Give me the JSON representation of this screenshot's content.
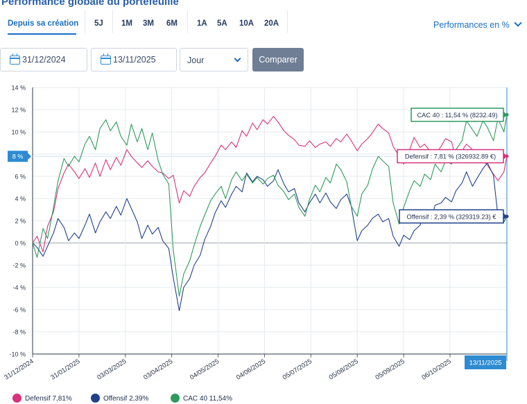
{
  "header": {
    "title": "Performance globale du portefeuille",
    "metric_select": "Performances en %"
  },
  "tabs": [
    {
      "label": "Depuis sa création",
      "active": true
    },
    {
      "label": "5J"
    },
    {
      "label": "1M"
    },
    {
      "label": "3M"
    },
    {
      "label": "6M"
    },
    {
      "label": "1A"
    },
    {
      "label": "5A"
    },
    {
      "label": "10A"
    },
    {
      "label": "20A"
    }
  ],
  "filters": {
    "start_date": "31/12/2024",
    "end_date": "13/11/2025",
    "granularity": "Jour",
    "compare_label": "Comparer"
  },
  "colors": {
    "defensif": "#d6337c",
    "offensif": "#21408a",
    "cac40": "#2e9a5e",
    "accent": "#2e8bd1"
  },
  "legend": [
    {
      "key": "defensif",
      "name": "Defensif",
      "value": "7,81%"
    },
    {
      "key": "offensif",
      "name": "Offensif",
      "value": "2,39%"
    },
    {
      "key": "cac40",
      "name": "CAC 40",
      "value": "11,54%"
    }
  ],
  "chart_data": {
    "type": "line",
    "ylim": [
      -10,
      14
    ],
    "y_ticks": [
      "-10 %",
      "-8 %",
      "-6 %",
      "-4 %",
      "-2 %",
      "0 %",
      "2 %",
      "4 %",
      "6 %",
      "8 %",
      "10 %",
      "12 %",
      "14 %"
    ],
    "x_ticks": [
      "31/12/2024",
      "31/01/2025",
      "03/03/2025",
      "03/04/2025",
      "04/05/2025",
      "04/06/2025",
      "05/07/2025",
      "05/08/2025",
      "05/09/2025",
      "06/10/2025"
    ],
    "crosshair": {
      "y_label": "8 %",
      "y_value": 7.8,
      "x_label": "13/11/2025"
    },
    "tooltips": [
      {
        "series": "cac40",
        "text": "CAC 40 : 11,54 % (8232.49)",
        "y": 11.54
      },
      {
        "series": "defensif",
        "text": "Defensif : 7,81 % (326932.89 €)",
        "y": 7.81
      },
      {
        "series": "offensif",
        "text": "Offensif : 2,39 % (329319.23) €",
        "y": 2.39
      }
    ],
    "series": [
      {
        "key": "defensif",
        "name": "Defensif",
        "x": [
          "31/12/2024",
          "03/01/2025",
          "07/01/2025",
          "10/01/2025",
          "14/01/2025",
          "17/01/2025",
          "21/01/2025",
          "24/01/2025",
          "28/01/2025",
          "31/01/2025",
          "04/02/2025",
          "07/02/2025",
          "11/02/2025",
          "14/02/2025",
          "18/02/2025",
          "21/02/2025",
          "25/02/2025",
          "28/02/2025",
          "04/03/2025",
          "07/03/2025",
          "11/03/2025",
          "14/03/2025",
          "18/03/2025",
          "21/03/2025",
          "25/03/2025",
          "28/03/2025",
          "01/04/2025",
          "04/04/2025",
          "08/04/2025",
          "11/04/2025",
          "15/04/2025",
          "18/04/2025",
          "22/04/2025",
          "25/04/2025",
          "29/04/2025",
          "02/05/2025",
          "06/05/2025",
          "09/05/2025",
          "13/05/2025",
          "16/05/2025",
          "20/05/2025",
          "23/05/2025",
          "27/05/2025",
          "30/05/2025",
          "03/06/2025",
          "06/06/2025",
          "10/06/2025",
          "13/06/2025",
          "17/06/2025",
          "20/06/2025",
          "24/06/2025",
          "27/06/2025",
          "01/07/2025",
          "04/07/2025",
          "08/07/2025",
          "11/07/2025",
          "15/07/2025",
          "18/07/2025",
          "22/07/2025",
          "25/07/2025",
          "29/07/2025",
          "01/08/2025",
          "05/08/2025",
          "08/08/2025",
          "12/08/2025",
          "15/08/2025",
          "19/08/2025",
          "22/08/2025",
          "26/08/2025",
          "29/08/2025",
          "02/09/2025",
          "05/09/2025",
          "09/09/2025",
          "12/09/2025",
          "16/09/2025",
          "19/09/2025",
          "23/09/2025",
          "26/09/2025",
          "30/09/2025",
          "03/10/2025",
          "07/10/2025",
          "10/10/2025",
          "14/10/2025",
          "17/10/2025",
          "21/10/2025",
          "24/10/2025",
          "28/10/2025",
          "31/10/2025",
          "04/11/2025",
          "07/11/2025",
          "11/11/2025",
          "13/11/2025"
        ],
        "values": [
          0,
          0.6,
          -0.8,
          1.5,
          2.8,
          4.9,
          6.3,
          7.1,
          6.4,
          5.8,
          6.7,
          5.9,
          7.2,
          6.0,
          7.5,
          6.6,
          7.7,
          7.0,
          8.4,
          7.8,
          7.2,
          6.8,
          7.4,
          6.9,
          6.4,
          6.3,
          5.8,
          6.1,
          3.6,
          4.7,
          4.2,
          5.1,
          5.9,
          6.3,
          7.2,
          7.8,
          8.8,
          8.4,
          9.1,
          8.6,
          10.1,
          9.6,
          10.8,
          10.2,
          11.1,
          10.7,
          11.4,
          10.9,
          10.1,
          9.7,
          9.3,
          8.8,
          8.7,
          9.2,
          8.6,
          8.9,
          9.1,
          8.7,
          9.4,
          9.1,
          9.8,
          9.2,
          8.3,
          8.9,
          9.4,
          9.9,
          10.7,
          10.3,
          9.9,
          8.7,
          7.8,
          7.1,
          8.4,
          9.5,
          8.6,
          8.9,
          8.2,
          7.9,
          8.7,
          9.4,
          9.1,
          7.6,
          8.3,
          8.9,
          8.4,
          8.1,
          7.4,
          7.0,
          6.2,
          5.6,
          6.4,
          7.81
        ]
      },
      {
        "key": "offensif",
        "name": "Offensif",
        "x": [
          "31/12/2024",
          "03/01/2025",
          "07/01/2025",
          "10/01/2025",
          "14/01/2025",
          "17/01/2025",
          "21/01/2025",
          "24/01/2025",
          "28/01/2025",
          "31/01/2025",
          "04/02/2025",
          "07/02/2025",
          "11/02/2025",
          "14/02/2025",
          "18/02/2025",
          "21/02/2025",
          "25/02/2025",
          "28/02/2025",
          "04/03/2025",
          "07/03/2025",
          "11/03/2025",
          "14/03/2025",
          "18/03/2025",
          "21/03/2025",
          "25/03/2025",
          "28/03/2025",
          "01/04/2025",
          "04/04/2025",
          "08/04/2025",
          "11/04/2025",
          "15/04/2025",
          "18/04/2025",
          "22/04/2025",
          "25/04/2025",
          "29/04/2025",
          "02/05/2025",
          "06/05/2025",
          "09/05/2025",
          "13/05/2025",
          "16/05/2025",
          "20/05/2025",
          "23/05/2025",
          "27/05/2025",
          "30/05/2025",
          "03/06/2025",
          "06/06/2025",
          "10/06/2025",
          "13/06/2025",
          "17/06/2025",
          "20/06/2025",
          "24/06/2025",
          "27/06/2025",
          "01/07/2025",
          "04/07/2025",
          "08/07/2025",
          "11/07/2025",
          "15/07/2025",
          "18/07/2025",
          "22/07/2025",
          "25/07/2025",
          "29/07/2025",
          "01/08/2025",
          "05/08/2025",
          "08/08/2025",
          "12/08/2025",
          "15/08/2025",
          "19/08/2025",
          "22/08/2025",
          "26/08/2025",
          "29/08/2025",
          "02/09/2025",
          "05/09/2025",
          "09/09/2025",
          "12/09/2025",
          "16/09/2025",
          "19/09/2025",
          "23/09/2025",
          "26/09/2025",
          "30/09/2025",
          "03/10/2025",
          "07/10/2025",
          "10/10/2025",
          "14/10/2025",
          "17/10/2025",
          "21/10/2025",
          "24/10/2025",
          "28/10/2025",
          "31/10/2025",
          "04/11/2025",
          "07/11/2025",
          "11/11/2025",
          "13/11/2025"
        ],
        "values": [
          0,
          -0.4,
          -1.2,
          -0.3,
          0.9,
          2.2,
          1.4,
          0.2,
          0.9,
          0.4,
          1.6,
          2.6,
          0.9,
          1.9,
          2.8,
          2.2,
          3.3,
          2.5,
          4.0,
          3.1,
          1.9,
          0.4,
          1.6,
          0.8,
          1.4,
          0.2,
          -0.5,
          -3.1,
          -6.1,
          -4.0,
          -3.2,
          -2.0,
          -1.1,
          0.3,
          1.5,
          2.7,
          3.8,
          3.2,
          4.4,
          5.1,
          4.6,
          6.3,
          5.5,
          6.0,
          5.7,
          5.1,
          5.6,
          6.6,
          5.3,
          4.6,
          4.9,
          3.6,
          2.8,
          3.6,
          4.4,
          3.6,
          4.5,
          3.7,
          3.1,
          3.9,
          4.4,
          3.3,
          0.2,
          1.1,
          1.6,
          2.2,
          2.6,
          1.9,
          2.2,
          0.6,
          -0.3,
          0.7,
          0.3,
          1.1,
          1.6,
          2.8,
          1.9,
          3.4,
          3.6,
          4.1,
          3.7,
          4.7,
          5.4,
          6.4,
          5.1,
          5.8,
          6.7,
          7.2,
          6.1,
          2.4,
          1.9,
          2.39
        ]
      },
      {
        "key": "cac40",
        "name": "CAC 40",
        "x": [
          "31/12/2024",
          "03/01/2025",
          "07/01/2025",
          "10/01/2025",
          "14/01/2025",
          "17/01/2025",
          "21/01/2025",
          "24/01/2025",
          "28/01/2025",
          "31/01/2025",
          "04/02/2025",
          "07/02/2025",
          "11/02/2025",
          "14/02/2025",
          "18/02/2025",
          "21/02/2025",
          "25/02/2025",
          "28/02/2025",
          "04/03/2025",
          "07/03/2025",
          "11/03/2025",
          "14/03/2025",
          "18/03/2025",
          "21/03/2025",
          "25/03/2025",
          "28/03/2025",
          "01/04/2025",
          "04/04/2025",
          "08/04/2025",
          "11/04/2025",
          "15/04/2025",
          "18/04/2025",
          "22/04/2025",
          "25/04/2025",
          "29/04/2025",
          "02/05/2025",
          "06/05/2025",
          "09/05/2025",
          "13/05/2025",
          "16/05/2025",
          "20/05/2025",
          "23/05/2025",
          "27/05/2025",
          "30/05/2025",
          "03/06/2025",
          "06/06/2025",
          "10/06/2025",
          "13/06/2025",
          "17/06/2025",
          "20/06/2025",
          "24/06/2025",
          "27/06/2025",
          "01/07/2025",
          "04/07/2025",
          "08/07/2025",
          "11/07/2025",
          "15/07/2025",
          "18/07/2025",
          "22/07/2025",
          "25/07/2025",
          "29/07/2025",
          "01/08/2025",
          "05/08/2025",
          "08/08/2025",
          "12/08/2025",
          "15/08/2025",
          "19/08/2025",
          "22/08/2025",
          "26/08/2025",
          "29/08/2025",
          "02/09/2025",
          "05/09/2025",
          "09/09/2025",
          "12/09/2025",
          "16/09/2025",
          "19/09/2025",
          "23/09/2025",
          "26/09/2025",
          "30/09/2025",
          "03/10/2025",
          "07/10/2025",
          "10/10/2025",
          "14/10/2025",
          "17/10/2025",
          "21/10/2025",
          "24/10/2025",
          "28/10/2025",
          "31/10/2025",
          "04/11/2025",
          "07/11/2025",
          "11/11/2025",
          "13/11/2025"
        ],
        "values": [
          0,
          -1.3,
          1.3,
          0.4,
          3.2,
          5.6,
          7.6,
          6.9,
          7.8,
          7.3,
          8.9,
          9.6,
          8.4,
          10.3,
          11.1,
          10.1,
          10.9,
          9.6,
          8.8,
          10.7,
          9.1,
          10.3,
          8.4,
          9.9,
          7.4,
          6.2,
          5.3,
          -0.6,
          -4.8,
          -2.8,
          -1.6,
          -0.2,
          1.5,
          2.5,
          3.8,
          4.4,
          5.1,
          4.0,
          5.7,
          6.4,
          5.6,
          6.2,
          5.4,
          5.9,
          5.3,
          5.8,
          6.1,
          5.2,
          4.6,
          3.9,
          4.4,
          3.2,
          2.4,
          3.9,
          5.2,
          4.6,
          5.9,
          5.4,
          7.1,
          6.6,
          5.5,
          3.3,
          2.4,
          4.4,
          5.2,
          6.6,
          7.8,
          7.4,
          6.9,
          3.6,
          1.7,
          3.2,
          4.7,
          5.6,
          5.1,
          6.2,
          5.7,
          7.1,
          6.4,
          7.4,
          7.1,
          8.4,
          9.2,
          11.0,
          10.2,
          9.6,
          11.0,
          10.4,
          9.2,
          11.2,
          10.0,
          11.54
        ]
      }
    ]
  }
}
